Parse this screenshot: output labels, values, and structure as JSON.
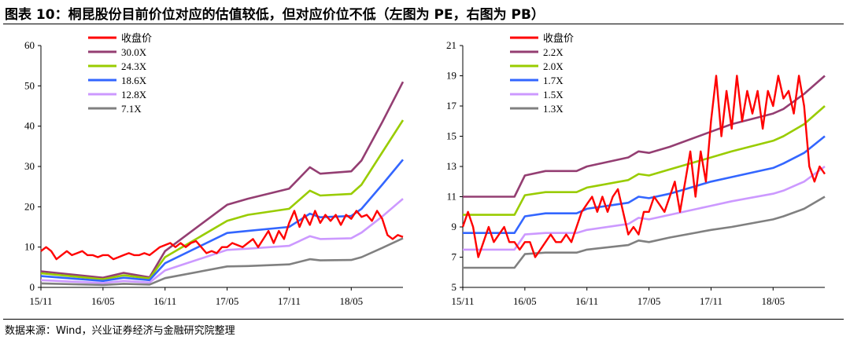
{
  "header": {
    "title": "图表 10：桐昆股份目前价位对应的估值较低，但对应价位不低（左图为 PE，右图为 PB）"
  },
  "footer": {
    "source": "数据来源：Wind，兴业证券经济与金融研究院整理"
  },
  "chart_data": [
    {
      "type": "line",
      "title": "",
      "xlabel": "",
      "ylabel": "",
      "ylim": [
        0,
        60
      ],
      "yticks": [
        0,
        10,
        20,
        30,
        40,
        50,
        60
      ],
      "x_tick_labels": [
        "15/11",
        "16/05",
        "16/11",
        "17/05",
        "17/11",
        "18/05"
      ],
      "x_tick_positions": [
        0,
        6,
        12,
        18,
        24,
        30
      ],
      "xlim": [
        0,
        35
      ],
      "grid": false,
      "legend_position": "top-left",
      "series": [
        {
          "name": "收盘价",
          "color": "#ff0000",
          "x": [
            0,
            0.5,
            1,
            1.5,
            2,
            2.5,
            3,
            3.5,
            4,
            4.5,
            5,
            5.5,
            6,
            6.5,
            7,
            7.5,
            8,
            8.5,
            9,
            9.5,
            10,
            10.5,
            11,
            11.5,
            12,
            12.5,
            13,
            13.5,
            14,
            14.5,
            15,
            15.5,
            16,
            16.5,
            17,
            17.5,
            18,
            18.5,
            19,
            19.5,
            20,
            20.5,
            21,
            21.5,
            22,
            22.5,
            23,
            23.5,
            24,
            24.5,
            25,
            25.5,
            26,
            26.5,
            27,
            27.5,
            28,
            28.5,
            29,
            29.5,
            30,
            30.5,
            31,
            31.5,
            32,
            32.5,
            33,
            33.5,
            34,
            34.5,
            35
          ],
          "values": [
            9,
            10,
            9,
            7,
            8,
            9,
            8,
            8.5,
            9,
            8,
            8,
            7.5,
            8,
            8,
            7,
            7.5,
            8,
            8.5,
            8,
            8,
            8.5,
            8,
            9,
            10,
            10.5,
            11,
            10,
            11,
            10,
            11,
            11.5,
            10,
            8.5,
            9,
            8.5,
            10,
            10,
            11,
            10.5,
            10,
            11,
            12,
            10,
            12,
            14,
            11,
            14,
            12,
            16,
            19,
            15,
            18,
            15.5,
            19,
            16,
            18,
            16.5,
            18,
            15.5,
            18,
            17,
            19,
            17.5,
            18,
            16.5,
            19,
            17,
            13,
            12,
            13,
            12.5
          ]
        },
        {
          "name": "30.0X",
          "color": "#943e72",
          "x": [
            0,
            6,
            8,
            10.5,
            12,
            18,
            20,
            24,
            26,
            27,
            30,
            31,
            33,
            35
          ],
          "values": [
            4,
            2.4,
            3.6,
            2.5,
            9,
            20.5,
            22,
            24.5,
            29.8,
            28.2,
            28.8,
            31.5,
            41,
            51
          ]
        },
        {
          "name": "24.3X",
          "color": "#99cc00",
          "x": [
            0,
            6,
            8,
            10.5,
            12,
            18,
            20,
            24,
            26,
            27,
            30,
            31,
            33,
            35
          ],
          "values": [
            3.5,
            2,
            3,
            2.2,
            7.5,
            16.5,
            18,
            19.5,
            24,
            22.8,
            23.2,
            25.5,
            33.5,
            41.5
          ]
        },
        {
          "name": "18.6X",
          "color": "#3366ff",
          "x": [
            0,
            6,
            8,
            10.5,
            12,
            18,
            20,
            24,
            26,
            27,
            30,
            31,
            33,
            35
          ],
          "values": [
            2.8,
            1.6,
            2.4,
            1.8,
            6,
            13.5,
            14,
            15,
            18.3,
            17.4,
            17.7,
            19.5,
            25.5,
            31.7
          ]
        },
        {
          "name": "12.8X",
          "color": "#cc99ff",
          "x": [
            0,
            6,
            8,
            10.5,
            12,
            18,
            20,
            24,
            26,
            27,
            30,
            31,
            33,
            35
          ],
          "values": [
            1.8,
            1.1,
            1.6,
            1.2,
            4.2,
            9.3,
            9.6,
            10.3,
            12.7,
            12,
            12.2,
            13.6,
            17.6,
            22
          ]
        },
        {
          "name": "7.1X",
          "color": "#808080",
          "x": [
            0,
            6,
            8,
            10.5,
            12,
            18,
            20,
            24,
            26,
            27,
            30,
            31,
            33,
            35
          ],
          "values": [
            1,
            0.6,
            0.9,
            0.7,
            2.3,
            5.2,
            5.3,
            5.7,
            7,
            6.7,
            6.8,
            7.5,
            9.8,
            12.2
          ]
        }
      ]
    },
    {
      "type": "line",
      "title": "",
      "xlabel": "",
      "ylabel": "",
      "ylim": [
        5,
        21
      ],
      "yticks": [
        5,
        7,
        9,
        11,
        13,
        15,
        17,
        19,
        21
      ],
      "x_tick_labels": [
        "15/11",
        "16/05",
        "16/11",
        "17/05",
        "17/11",
        "18/05"
      ],
      "x_tick_positions": [
        0,
        6,
        12,
        18,
        24,
        30
      ],
      "xlim": [
        0,
        35
      ],
      "grid": false,
      "legend_position": "top-left",
      "series": [
        {
          "name": "收盘价",
          "color": "#ff0000",
          "x": [
            0,
            0.5,
            1,
            1.5,
            2,
            2.5,
            3,
            3.5,
            4,
            4.5,
            5,
            5.5,
            6,
            6.5,
            7,
            7.5,
            8,
            8.5,
            9,
            9.5,
            10,
            10.5,
            11,
            11.5,
            12,
            12.5,
            13,
            13.5,
            14,
            14.5,
            15,
            15.5,
            16,
            16.5,
            17,
            17.5,
            18,
            18.5,
            19,
            19.5,
            20,
            20.5,
            21,
            21.5,
            22,
            22.5,
            23,
            23.5,
            24,
            24.5,
            25,
            25.5,
            26,
            26.5,
            27,
            27.5,
            28,
            28.5,
            29,
            29.5,
            30,
            30.5,
            31,
            31.5,
            32,
            32.5,
            33,
            33.5,
            34,
            34.5,
            35
          ],
          "values": [
            9,
            10,
            9,
            7,
            8,
            9,
            8,
            8.5,
            9,
            8,
            8,
            7.5,
            8,
            8,
            7,
            7.5,
            8,
            8.5,
            8,
            8,
            8.5,
            8,
            9,
            10,
            10.5,
            11,
            10,
            11,
            10,
            11,
            11.5,
            10,
            8.5,
            9,
            8.5,
            10,
            10,
            11,
            10.5,
            10,
            11,
            12,
            10,
            12,
            14,
            11,
            14,
            12,
            16,
            19,
            15,
            18,
            15.5,
            19,
            16,
            18,
            16.5,
            18,
            15.5,
            18,
            17,
            19,
            17.5,
            18,
            16.5,
            19,
            17,
            13,
            12,
            13,
            12.5
          ]
        },
        {
          "name": "2.2X",
          "color": "#943e72",
          "x": [
            0,
            5,
            6,
            8,
            11,
            12,
            16,
            17,
            18,
            20,
            24,
            26,
            30,
            31,
            33,
            35
          ],
          "values": [
            11,
            11,
            12.4,
            12.7,
            12.7,
            13,
            13.6,
            14,
            13.9,
            14.3,
            15.3,
            15.8,
            16.5,
            16.8,
            17.8,
            19
          ]
        },
        {
          "name": "2.0X",
          "color": "#99cc00",
          "x": [
            0,
            5,
            6,
            8,
            11,
            12,
            16,
            17,
            18,
            20,
            24,
            26,
            30,
            31,
            33,
            35
          ],
          "values": [
            9.8,
            9.8,
            11.1,
            11.3,
            11.3,
            11.6,
            12.1,
            12.5,
            12.4,
            12.8,
            13.6,
            14,
            14.7,
            15,
            15.8,
            17
          ]
        },
        {
          "name": "1.7X",
          "color": "#3366ff",
          "x": [
            0,
            5,
            6,
            8,
            11,
            12,
            16,
            17,
            18,
            20,
            24,
            26,
            30,
            31,
            33,
            35
          ],
          "values": [
            8.6,
            8.6,
            9.7,
            9.9,
            9.9,
            10.2,
            10.6,
            11,
            10.9,
            11.2,
            12,
            12.3,
            12.9,
            13.2,
            13.9,
            15
          ]
        },
        {
          "name": "1.5X",
          "color": "#cc99ff",
          "x": [
            0,
            5,
            6,
            8,
            11,
            12,
            16,
            17,
            18,
            20,
            24,
            26,
            30,
            31,
            33,
            35
          ],
          "values": [
            7.5,
            7.5,
            8.5,
            8.6,
            8.6,
            8.8,
            9.2,
            9.6,
            9.5,
            9.8,
            10.4,
            10.7,
            11.2,
            11.4,
            12,
            13
          ]
        },
        {
          "name": "1.3X",
          "color": "#808080",
          "x": [
            0,
            5,
            6,
            8,
            11,
            12,
            16,
            17,
            18,
            20,
            24,
            26,
            30,
            31,
            33,
            35
          ],
          "values": [
            6.3,
            6.3,
            7.2,
            7.3,
            7.3,
            7.5,
            7.8,
            8.1,
            8,
            8.3,
            8.8,
            9,
            9.5,
            9.7,
            10.2,
            11
          ]
        }
      ]
    }
  ]
}
